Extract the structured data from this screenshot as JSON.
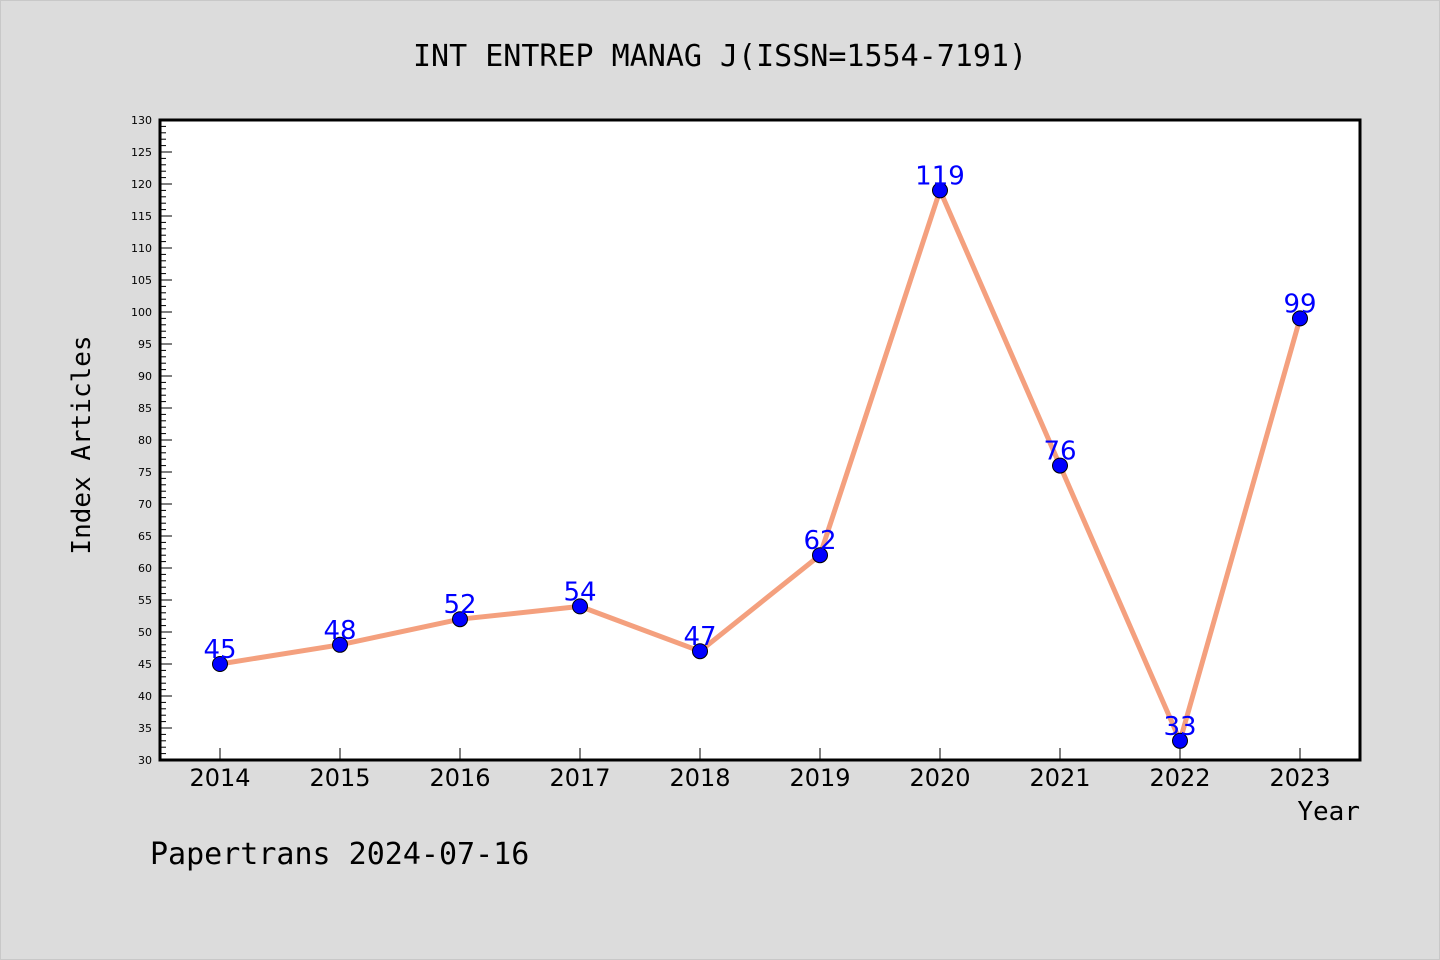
{
  "chart_data": {
    "type": "line",
    "title": "INT ENTREP MANAG J(ISSN=1554-7191)",
    "xlabel": "Year",
    "ylabel": "Index Articles",
    "categories": [
      "2014",
      "2015",
      "2016",
      "2017",
      "2018",
      "2019",
      "2020",
      "2021",
      "2022",
      "2023"
    ],
    "series": [
      {
        "values": [
          45,
          48,
          52,
          54,
          47,
          62,
          119,
          76,
          33,
          99
        ]
      }
    ],
    "ylim": [
      30,
      130
    ],
    "ytick_step": 5,
    "grid": false,
    "line_color": "#f4a07e",
    "marker_color": "#0000ff",
    "label_color": "#0000ff"
  },
  "footer": "Papertrans 2024-07-16"
}
